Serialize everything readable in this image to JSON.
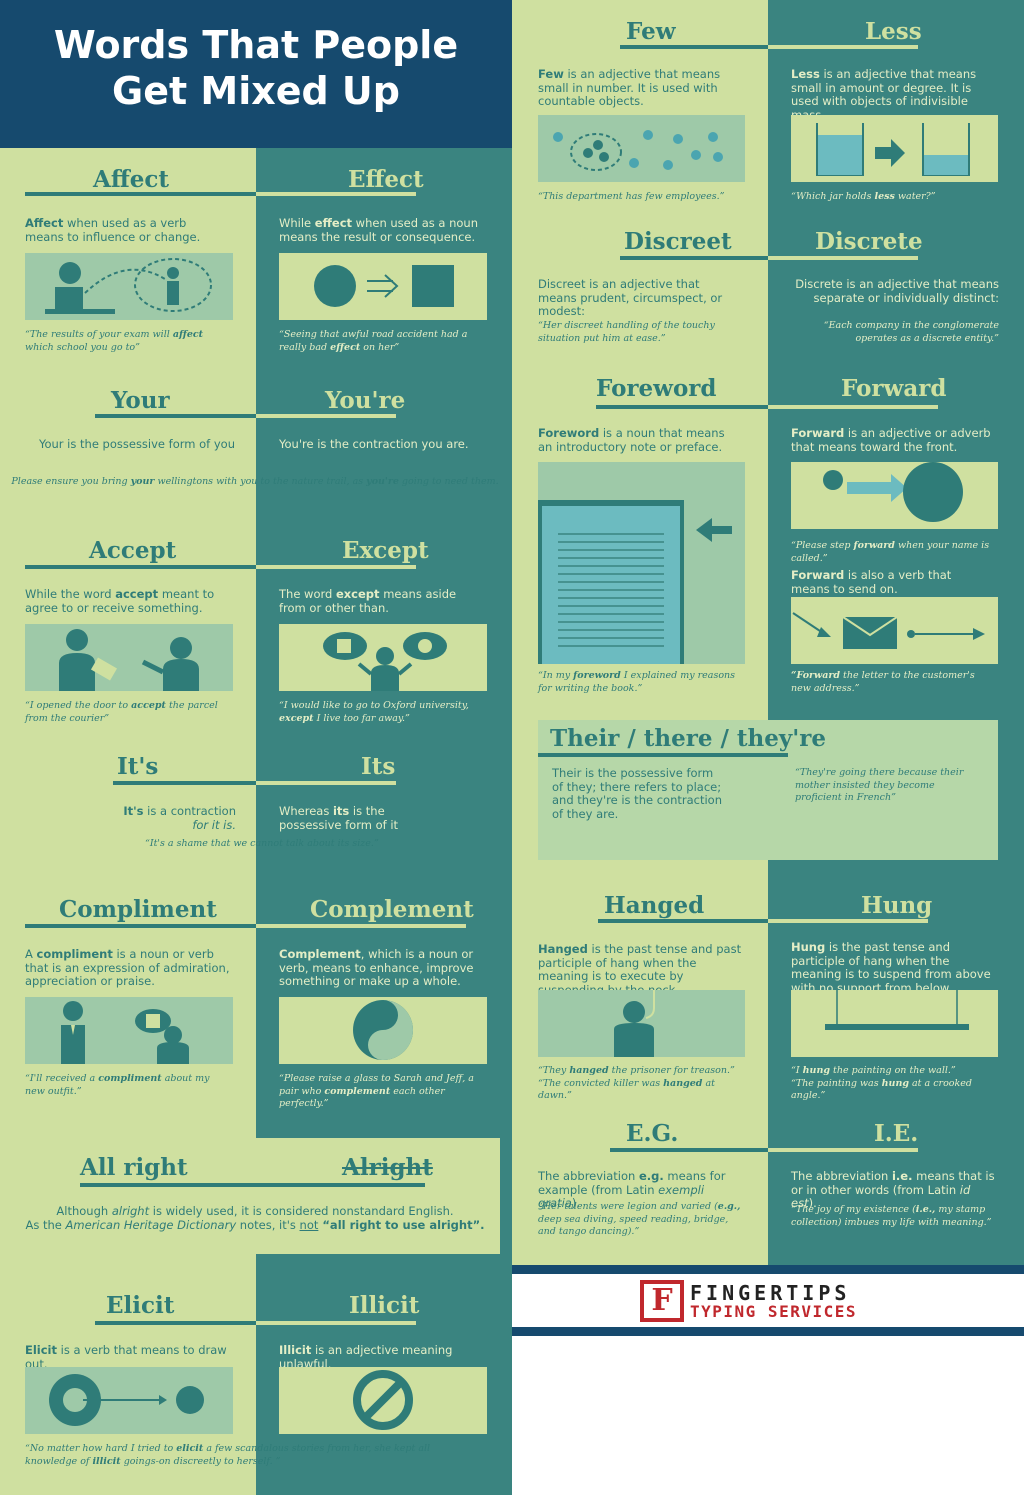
{
  "title": {
    "line1": "Words That People",
    "line2": "Get Mixed Up"
  },
  "pairs": {
    "affect_effect": {
      "left_head": "Affect",
      "right_head": "Effect",
      "left_def_word": "Affect",
      "left_def_rest": " when used as a verb means to influence or change.",
      "right_def_pre": "While ",
      "right_def_word": "effect",
      "right_def_rest": " when used as a noun means the result or consequence.",
      "left_quote_a": "“The results of your exam will ",
      "left_quote_word": "affect",
      "left_quote_b": " which school you go to”",
      "right_quote_a": "“Seeing that awful road accident had a really bad ",
      "right_quote_word": "effect",
      "right_quote_b": " on her”"
    },
    "your_youre": {
      "left_head": "Your",
      "right_head": "You're",
      "left_def": "Your is the possessive form of you",
      "right_def": "You're is the contraction you are.",
      "quote_a": "Please ensure you bring ",
      "quote_w1": "your",
      "quote_b": " wellingtons with you to the nature trail, as ",
      "quote_w2": "you're",
      "quote_c": " going to need them."
    },
    "accept_except": {
      "left_head": "Accept",
      "right_head": "Except",
      "left_def_pre": "While the word ",
      "left_def_word": "accept",
      "left_def_rest": " meant to agree to or receive something.",
      "right_def_pre": "The word ",
      "right_def_word": "except",
      "right_def_rest": " means aside from or other than.",
      "left_quote_a": "“I opened the door to ",
      "left_quote_word": "accept",
      "left_quote_b": " the parcel from the courier”",
      "right_quote_a": "“I would like to go to Oxford university, ",
      "right_quote_word": "except",
      "right_quote_b": " I live too far away.”"
    },
    "its": {
      "left_head": "It's",
      "right_head": "Its",
      "left_def_word": "It's",
      "left_def_rest": " is a contraction",
      "left_def_em": "for it is.",
      "right_def_pre": "Whereas ",
      "right_def_word": "its",
      "right_def_rest": " is the possessive form of it",
      "quote": "“It's a shame that we cannot  talk  about its size.”"
    },
    "compliment": {
      "left_head": "Compliment",
      "right_head": "Complement",
      "left_def_pre": "A ",
      "left_def_word": "compliment",
      "left_def_rest": " is a noun or verb that is an expression of admiration, appreciation or praise.",
      "right_def_word": "Complement",
      "right_def_rest": ", which is a noun or verb, means to enhance, improve something or make up a whole.",
      "left_quote_a": "“I'll received a ",
      "left_quote_word": "compliment",
      "left_quote_b": " about my new outfit.”",
      "right_quote_a": "“Please raise a glass to Sarah and Jeff, a pair who ",
      "right_quote_word": "complement",
      "right_quote_b": " each other perfectly.”"
    },
    "allright": {
      "left_head": "All right",
      "right_head": "Alright",
      "line1_a": "Although ",
      "line1_word": "alright",
      "line1_b": " is widely used, it is considered nonstandard English.",
      "line2_a": "As the ",
      "line2_em": "American Heritage Dictionary",
      "line2_b": " notes, it's ",
      "line2_not": "not",
      "line2_c": " “all right to use alright”."
    },
    "elicit": {
      "left_head": "Elicit",
      "right_head": "Illicit",
      "left_def_word": "Elicit",
      "left_def_rest": " is a verb that means to draw out.",
      "right_def_word": "Illicit",
      "right_def_rest": " is an adjective meaning unlawful.",
      "quote_a": "“No matter how hard I tried to ",
      "quote_w1": "elicit",
      "quote_b": " a few scandalous stories from her, she kept all knowledge of ",
      "quote_w2": "illicit",
      "quote_c": " goings-on discreetly to herself. ”"
    },
    "few_less": {
      "left_head": "Few",
      "right_head": "Less",
      "left_def_word": "Few",
      "left_def_rest": " is an adjective that means small in number. It is used with countable objects.",
      "right_def_word": "Less",
      "right_def_rest": " is an adjective that means small in amount or degree. It is used with objects of indivisible mass.",
      "left_quote_a": "“This department has ",
      "left_quote_word": "few",
      "left_quote_b": " employees.”",
      "right_quote_a": "“Which jar holds ",
      "right_quote_word": "less",
      "right_quote_b": " water?”"
    },
    "discreet": {
      "left_head": "Discreet",
      "right_head": "Discrete",
      "left_def": "Discreet is an adjective that means prudent, circumspect, or modest:",
      "right_def": "Discrete is an adjective that means separate or individually distinct:",
      "left_quote": "“Her discreet handling of the touchy situation put him at ease.”",
      "right_quote": "“Each company in the conglomerate operates as a discrete entity.”"
    },
    "foreword": {
      "left_head": "Foreword",
      "right_head": "Forward",
      "left_def_word": "Foreword",
      "left_def_rest": " is a noun that means an introductory note or preface.",
      "right_def_word": "Forward",
      "right_def_rest": " is an adjective or adverb that means toward the front.",
      "left_quote_a": "“In my ",
      "left_quote_word": "foreword",
      "left_quote_b": " I explained my reasons for writing the book.”",
      "right_quote_a": "“Please step ",
      "right_quote_word": "forward",
      "right_quote_b": " when your name is called.”",
      "right_def2_word": "Forward",
      "right_def2_rest": " is also a verb that means to send on.",
      "right_quote2_word": "“Forward",
      "right_quote2_rest": " the letter to the customer's new address.”"
    },
    "their": {
      "head": "Their / there / they're",
      "def": "Their is the possessive form of they; there refers to place; and they're is the contraction of they are.",
      "quote": "“They're going there because their mother insisted they become proficient in French”"
    },
    "hanged": {
      "left_head": "Hanged",
      "right_head": "Hung",
      "left_def_word": "Hanged",
      "left_def_rest": " is the past tense and past participle of hang when the meaning is to execute by suspending by the neck.",
      "right_def_word": "Hung",
      "right_def_rest": " is the past tense and participle of hang when the meaning is to suspend from above with no support from below.",
      "left_q1_a": "“They ",
      "left_q1_word": "hanged",
      "left_q1_b": " the prisoner for treason.”",
      "left_q2_a": "“The convicted killer was ",
      "left_q2_word": "hanged",
      "left_q2_b": " at dawn.”",
      "right_q1_a": "“I ",
      "right_q1_word": "hung",
      "right_q1_b": " the painting on the wall.”",
      "right_q2_a": "“The painting was ",
      "right_q2_word": "hung",
      "right_q2_b": " at a crooked angle.”"
    },
    "eg_ie": {
      "left_head": "E.G.",
      "right_head": "I.E.",
      "left_def_a": "The abbreviation ",
      "left_def_word": "e.g.",
      "left_def_b": " means for example (from Latin ",
      "left_def_em": "exempli gratia",
      "left_def_c": ").",
      "right_def_a": "The abbreviation ",
      "right_def_word": "i.e.",
      "right_def_b": " means that is or in other words (from Latin ",
      "right_def_em": "id est",
      "right_def_c": ").",
      "left_quote_a": "“Her talents were legion and varied (",
      "left_quote_word": "e.g.,",
      "left_quote_b": " deep sea diving,  speed  reading, bridge, and tango dancing).”",
      "right_quote_a": "“The joy of my existence (",
      "right_quote_word": "i.e.,",
      "right_quote_b": " my stamp collection) imbues my life with meaning.”"
    }
  },
  "logo": {
    "letter": "F",
    "line1": "FINGERTIPS",
    "line2": "TYPING SERVICES"
  },
  "colors": {
    "light": "#cfe0a0",
    "dark": "#3a8480",
    "navy": "#164a6e",
    "logo_red": "#c0282d"
  }
}
